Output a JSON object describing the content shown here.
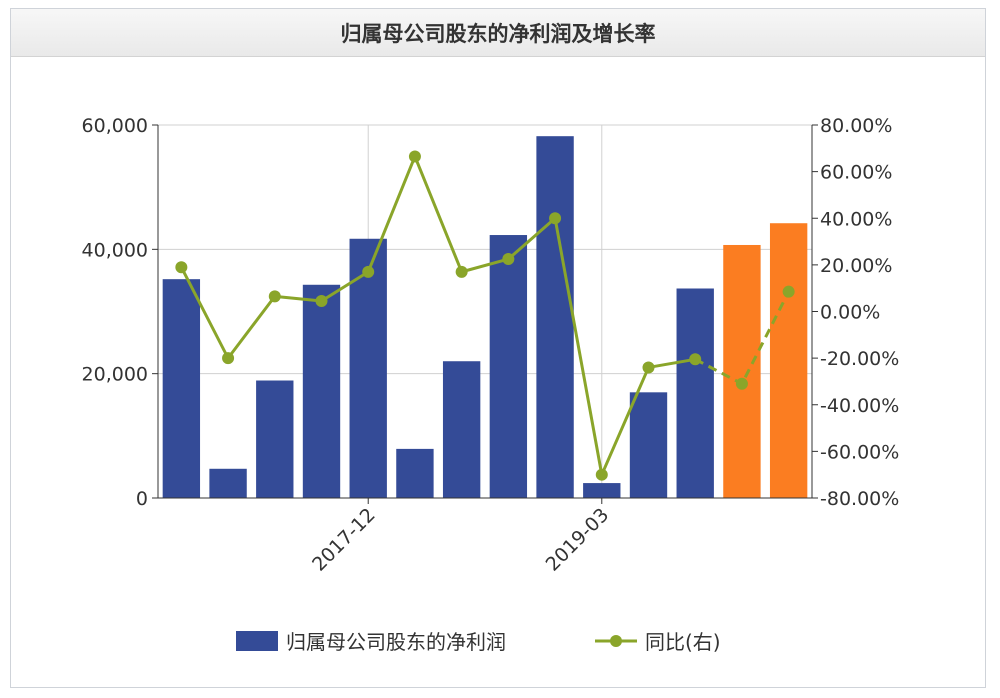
{
  "title": "归属母公司股东的净利润及增长率",
  "colors": {
    "bar": "#344b97",
    "bar_forecast": "#fb7d21",
    "line": "#8aa52a",
    "axis": "#333333",
    "grid": "#d0d0d0"
  },
  "legend": {
    "bar_label": "归属母公司股东的净利润",
    "line_label": "同比(右)"
  },
  "chart_data": {
    "type": "bar",
    "categories": [
      "",
      "",
      "",
      "",
      "2017-12",
      "",
      "",
      "",
      "",
      "2019-03",
      "",
      "",
      "",
      ""
    ],
    "x_tick_labels": [
      "2017-12",
      "2019-03"
    ],
    "series": [
      {
        "name": "归属母公司股东的净利润",
        "type": "bar",
        "axis": "left",
        "values": [
          35200,
          4700,
          18900,
          34300,
          41700,
          7900,
          22000,
          42300,
          58200,
          2400,
          17000,
          33700,
          40700,
          44200
        ],
        "forecast_from_index": 12
      },
      {
        "name": "同比(右)",
        "type": "line",
        "axis": "right",
        "values": [
          19.0,
          -20.0,
          6.5,
          4.5,
          17.0,
          66.5,
          17.0,
          22.5,
          40.0,
          -70.0,
          -24.0,
          -20.5,
          -31.0,
          8.5
        ],
        "dashed_from_index": 11
      }
    ],
    "y_left": {
      "min": 0,
      "max": 60000,
      "ticks": [
        "0",
        "20,000",
        "40,000",
        "60,000"
      ],
      "tick_values": [
        0,
        20000,
        40000,
        60000
      ]
    },
    "y_right": {
      "min": -80,
      "max": 80,
      "ticks": [
        "-80.00%",
        "-60.00%",
        "-40.00%",
        "-20.00%",
        "0.00%",
        "20.00%",
        "40.00%",
        "60.00%",
        "80.00%"
      ],
      "tick_values": [
        -80,
        -60,
        -40,
        -20,
        0,
        20,
        40,
        60,
        80
      ]
    },
    "grid": true,
    "legend_position": "bottom"
  }
}
